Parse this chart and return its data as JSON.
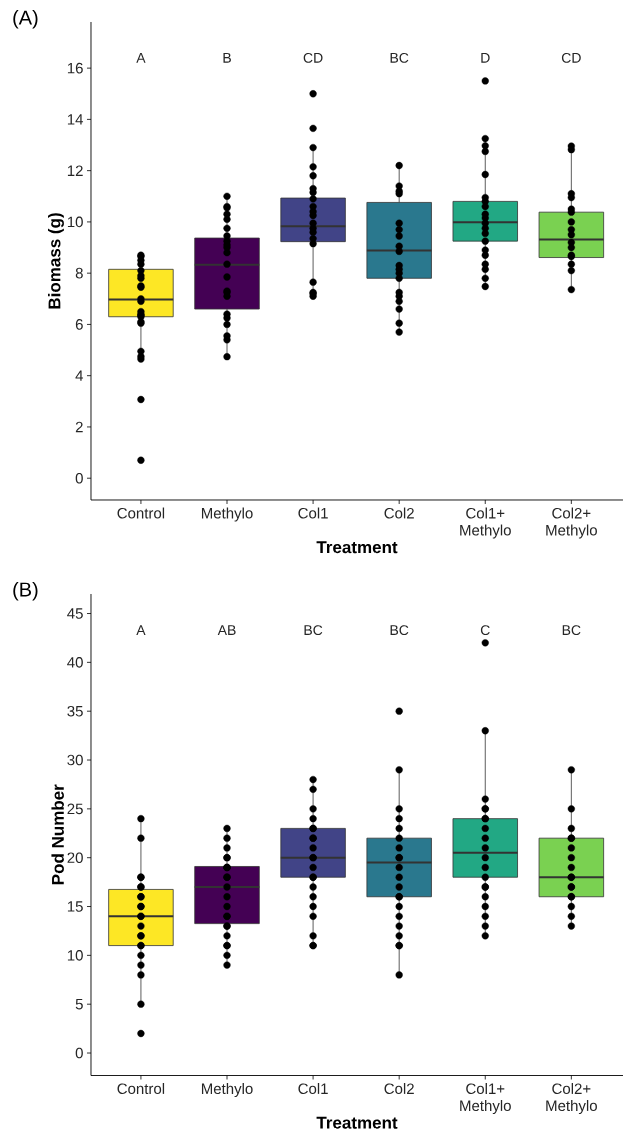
{
  "chart_data": [
    {
      "type": "box",
      "title": "(A)",
      "xlabel": "Treatment",
      "ylabel": "Biomass (g)",
      "categories": [
        "Control",
        "Methylo",
        "Col1",
        "Col2",
        "Col1+ Methylo",
        "Col2+ Methylo"
      ],
      "ylim": [
        -0.85,
        17.8
      ],
      "yticks": [
        0,
        2,
        4,
        6,
        8,
        10,
        12,
        14,
        16
      ],
      "series": [
        {
          "type": "box",
          "colors": [
            "#fde725",
            "#440154",
            "#414487",
            "#2a788e",
            "#22a884",
            "#7ad151"
          ],
          "boxes": [
            {
              "low": 4.65,
              "q1": 6.3,
              "median": 6.97,
              "q3": 8.15,
              "high": 8.7
            },
            {
              "low": 4.74,
              "q1": 6.6,
              "median": 8.33,
              "q3": 9.37,
              "high": 11.0
            },
            {
              "low": 7.1,
              "q1": 9.23,
              "median": 9.83,
              "q3": 10.93,
              "high": 12.85
            },
            {
              "low": 5.7,
              "q1": 7.8,
              "median": 8.88,
              "q3": 10.76,
              "high": 12.2
            },
            {
              "low": 7.48,
              "q1": 9.25,
              "median": 9.99,
              "q3": 10.8,
              "high": 13.2
            },
            {
              "low": 7.36,
              "q1": 8.61,
              "median": 9.31,
              "q3": 10.38,
              "high": 12.96
            }
          ]
        },
        {
          "type": "scatter",
          "color": "#000000",
          "marker": "circle",
          "x": [
            "Control",
            "Control",
            "Control",
            "Control",
            "Control",
            "Control",
            "Control",
            "Control",
            "Control",
            "Control",
            "Control",
            "Control",
            "Control",
            "Control",
            "Control",
            "Control",
            "Control",
            "Control",
            "Control",
            "Control",
            "Control",
            "Control",
            "Methylo",
            "Methylo",
            "Methylo",
            "Methylo",
            "Methylo",
            "Methylo",
            "Methylo",
            "Methylo",
            "Methylo",
            "Methylo",
            "Methylo",
            "Methylo",
            "Methylo",
            "Methylo",
            "Methylo",
            "Methylo",
            "Methylo",
            "Methylo",
            "Methylo",
            "Methylo",
            "Methylo",
            "Methylo",
            "Col1",
            "Col1",
            "Col1",
            "Col1",
            "Col1",
            "Col1",
            "Col1",
            "Col1",
            "Col1",
            "Col1",
            "Col1",
            "Col1",
            "Col1",
            "Col1",
            "Col1",
            "Col1",
            "Col1",
            "Col1",
            "Col1",
            "Col1",
            "Col2",
            "Col2",
            "Col2",
            "Col2",
            "Col2",
            "Col2",
            "Col2",
            "Col2",
            "Col2",
            "Col2",
            "Col2",
            "Col2",
            "Col2",
            "Col2",
            "Col2",
            "Col2",
            "Col2",
            "Col2",
            "Col2",
            "Col1+ Methylo",
            "Col1+ Methylo",
            "Col1+ Methylo",
            "Col1+ Methylo",
            "Col1+ Methylo",
            "Col1+ Methylo",
            "Col1+ Methylo",
            "Col1+ Methylo",
            "Col1+ Methylo",
            "Col1+ Methylo",
            "Col1+ Methylo",
            "Col1+ Methylo",
            "Col1+ Methylo",
            "Col1+ Methylo",
            "Col1+ Methylo",
            "Col1+ Methylo",
            "Col1+ Methylo",
            "Col1+ Methylo",
            "Col1+ Methylo",
            "Col1+ Methylo",
            "Col2+ Methylo",
            "Col2+ Methylo",
            "Col2+ Methylo",
            "Col2+ Methylo",
            "Col2+ Methylo",
            "Col2+ Methylo",
            "Col2+ Methylo",
            "Col2+ Methylo",
            "Col2+ Methylo",
            "Col2+ Methylo",
            "Col2+ Methylo",
            "Col2+ Methylo",
            "Col2+ Methylo",
            "Col2+ Methylo",
            "Col2+ Methylo",
            "Col2+ Methylo"
          ],
          "values": [
            8.7,
            8.65,
            8.5,
            8.35,
            8.1,
            7.9,
            7.8,
            7.5,
            7.45,
            7.0,
            6.9,
            6.5,
            6.4,
            6.35,
            6.3,
            6.1,
            6.05,
            4.95,
            4.75,
            4.65,
            3.07,
            0.7,
            11.0,
            10.6,
            10.55,
            10.3,
            10.1,
            9.75,
            9.45,
            9.25,
            9.1,
            9.0,
            8.8,
            8.35,
            7.85,
            7.3,
            7.25,
            7.1,
            6.4,
            6.25,
            6.0,
            5.55,
            5.4,
            4.74,
            15.0,
            13.65,
            12.9,
            12.15,
            11.8,
            11.3,
            11.15,
            10.9,
            10.6,
            10.4,
            10.25,
            9.95,
            9.75,
            9.6,
            9.35,
            9.15,
            7.65,
            7.25,
            7.2,
            7.1,
            12.2,
            11.4,
            11.2,
            11.1,
            9.95,
            9.7,
            9.45,
            9.05,
            8.85,
            8.3,
            8.15,
            8.0,
            7.8,
            7.25,
            7.1,
            6.9,
            6.6,
            6.05,
            5.7,
            15.5,
            13.25,
            12.97,
            12.75,
            11.85,
            10.95,
            10.8,
            10.6,
            10.3,
            10.15,
            9.95,
            9.75,
            9.55,
            9.25,
            8.9,
            8.7,
            8.35,
            8.15,
            7.8,
            7.48,
            12.96,
            12.82,
            11.1,
            10.95,
            10.5,
            10.38,
            10.0,
            9.7,
            9.5,
            9.2,
            9.0,
            8.7,
            8.65,
            8.35,
            8.1,
            7.36
          ]
        }
      ],
      "annotations": [
        "A",
        "B",
        "CD",
        "BC",
        "D",
        "CD"
      ]
    },
    {
      "type": "box",
      "title": "(B)",
      "xlabel": "Treatment",
      "ylabel": "Pod Number",
      "categories": [
        "Control",
        "Methylo",
        "Col1",
        "Col2",
        "Col1+ Methylo",
        "Col2+ Methylo"
      ],
      "ylim": [
        -2.3,
        47
      ],
      "yticks": [
        0,
        5,
        10,
        15,
        20,
        25,
        30,
        35,
        40,
        45
      ],
      "series": [
        {
          "type": "box",
          "colors": [
            "#fde725",
            "#440154",
            "#414487",
            "#2a788e",
            "#22a884",
            "#7ad151"
          ],
          "boxes": [
            {
              "low": 5,
              "q1": 11,
              "median": 14,
              "q3": 16.75,
              "high": 24
            },
            {
              "low": 9,
              "q1": 13.25,
              "median": 17,
              "q3": 19.1,
              "high": 23
            },
            {
              "low": 11,
              "q1": 18,
              "median": 20,
              "q3": 23,
              "high": 28
            },
            {
              "low": 8,
              "q1": 16,
              "median": 19.5,
              "q3": 22,
              "high": 29
            },
            {
              "low": 12,
              "q1": 18,
              "median": 20.5,
              "q3": 24,
              "high": 33
            },
            {
              "low": 13,
              "q1": 16,
              "median": 18,
              "q3": 22,
              "high": 29
            }
          ]
        },
        {
          "type": "scatter",
          "color": "#000000",
          "marker": "circle",
          "x": [
            "Control",
            "Control",
            "Control",
            "Control",
            "Control",
            "Control",
            "Control",
            "Control",
            "Control",
            "Control",
            "Control",
            "Control",
            "Control",
            "Control",
            "Control",
            "Control",
            "Control",
            "Control",
            "Control",
            "Control",
            "Control",
            "Control",
            "Methylo",
            "Methylo",
            "Methylo",
            "Methylo",
            "Methylo",
            "Methylo",
            "Methylo",
            "Methylo",
            "Methylo",
            "Methylo",
            "Methylo",
            "Methylo",
            "Methylo",
            "Methylo",
            "Methylo",
            "Methylo",
            "Methylo",
            "Methylo",
            "Methylo",
            "Methylo",
            "Methylo",
            "Methylo",
            "Col1",
            "Col1",
            "Col1",
            "Col1",
            "Col1",
            "Col1",
            "Col1",
            "Col1",
            "Col1",
            "Col1",
            "Col1",
            "Col1",
            "Col1",
            "Col1",
            "Col1",
            "Col1",
            "Col1",
            "Col1",
            "Col1",
            "Col1",
            "Col1",
            "Col2",
            "Col2",
            "Col2",
            "Col2",
            "Col2",
            "Col2",
            "Col2",
            "Col2",
            "Col2",
            "Col2",
            "Col2",
            "Col2",
            "Col2",
            "Col2",
            "Col2",
            "Col2",
            "Col2",
            "Col2",
            "Col2",
            "Col2",
            "Col2",
            "Col1+ Methylo",
            "Col1+ Methylo",
            "Col1+ Methylo",
            "Col1+ Methylo",
            "Col1+ Methylo",
            "Col1+ Methylo",
            "Col1+ Methylo",
            "Col1+ Methylo",
            "Col1+ Methylo",
            "Col1+ Methylo",
            "Col1+ Methylo",
            "Col1+ Methylo",
            "Col1+ Methylo",
            "Col1+ Methylo",
            "Col1+ Methylo",
            "Col1+ Methylo",
            "Col1+ Methylo",
            "Col1+ Methylo",
            "Col1+ Methylo",
            "Col1+ Methylo",
            "Col2+ Methylo",
            "Col2+ Methylo",
            "Col2+ Methylo",
            "Col2+ Methylo",
            "Col2+ Methylo",
            "Col2+ Methylo",
            "Col2+ Methylo",
            "Col2+ Methylo",
            "Col2+ Methylo",
            "Col2+ Methylo",
            "Col2+ Methylo",
            "Col2+ Methylo",
            "Col2+ Methylo",
            "Col2+ Methylo",
            "Col2+ Methylo",
            "Col2+ Methylo",
            "Col2+ Methylo"
          ],
          "values": [
            24,
            22,
            18,
            18,
            17,
            17,
            16,
            16,
            15,
            15,
            14,
            14,
            13,
            12,
            12,
            11,
            11,
            10,
            9,
            8,
            5,
            2,
            23,
            22,
            21,
            20,
            20,
            19,
            19,
            19,
            18,
            18,
            17,
            16,
            15,
            14,
            14,
            13,
            13,
            12,
            11,
            11,
            10,
            9,
            28,
            27,
            25,
            24,
            23,
            23,
            22,
            22,
            21,
            20,
            20,
            19,
            18,
            18,
            17,
            16,
            15,
            14,
            12,
            11,
            11,
            35,
            29,
            25,
            24,
            23,
            22,
            21,
            20,
            20,
            19,
            18,
            17,
            16,
            16,
            15,
            14,
            13,
            12,
            11,
            11,
            8,
            42,
            33,
            26,
            25,
            25,
            24,
            24,
            23,
            22,
            21,
            20,
            19,
            18,
            17,
            17,
            16,
            15,
            14,
            13,
            12,
            29,
            25,
            23,
            22,
            22,
            21,
            20,
            19,
            18,
            18,
            17,
            17,
            16,
            16,
            15,
            14,
            13
          ]
        }
      ],
      "annotations": [
        "A",
        "AB",
        "BC",
        "BC",
        "C",
        "BC"
      ]
    }
  ]
}
